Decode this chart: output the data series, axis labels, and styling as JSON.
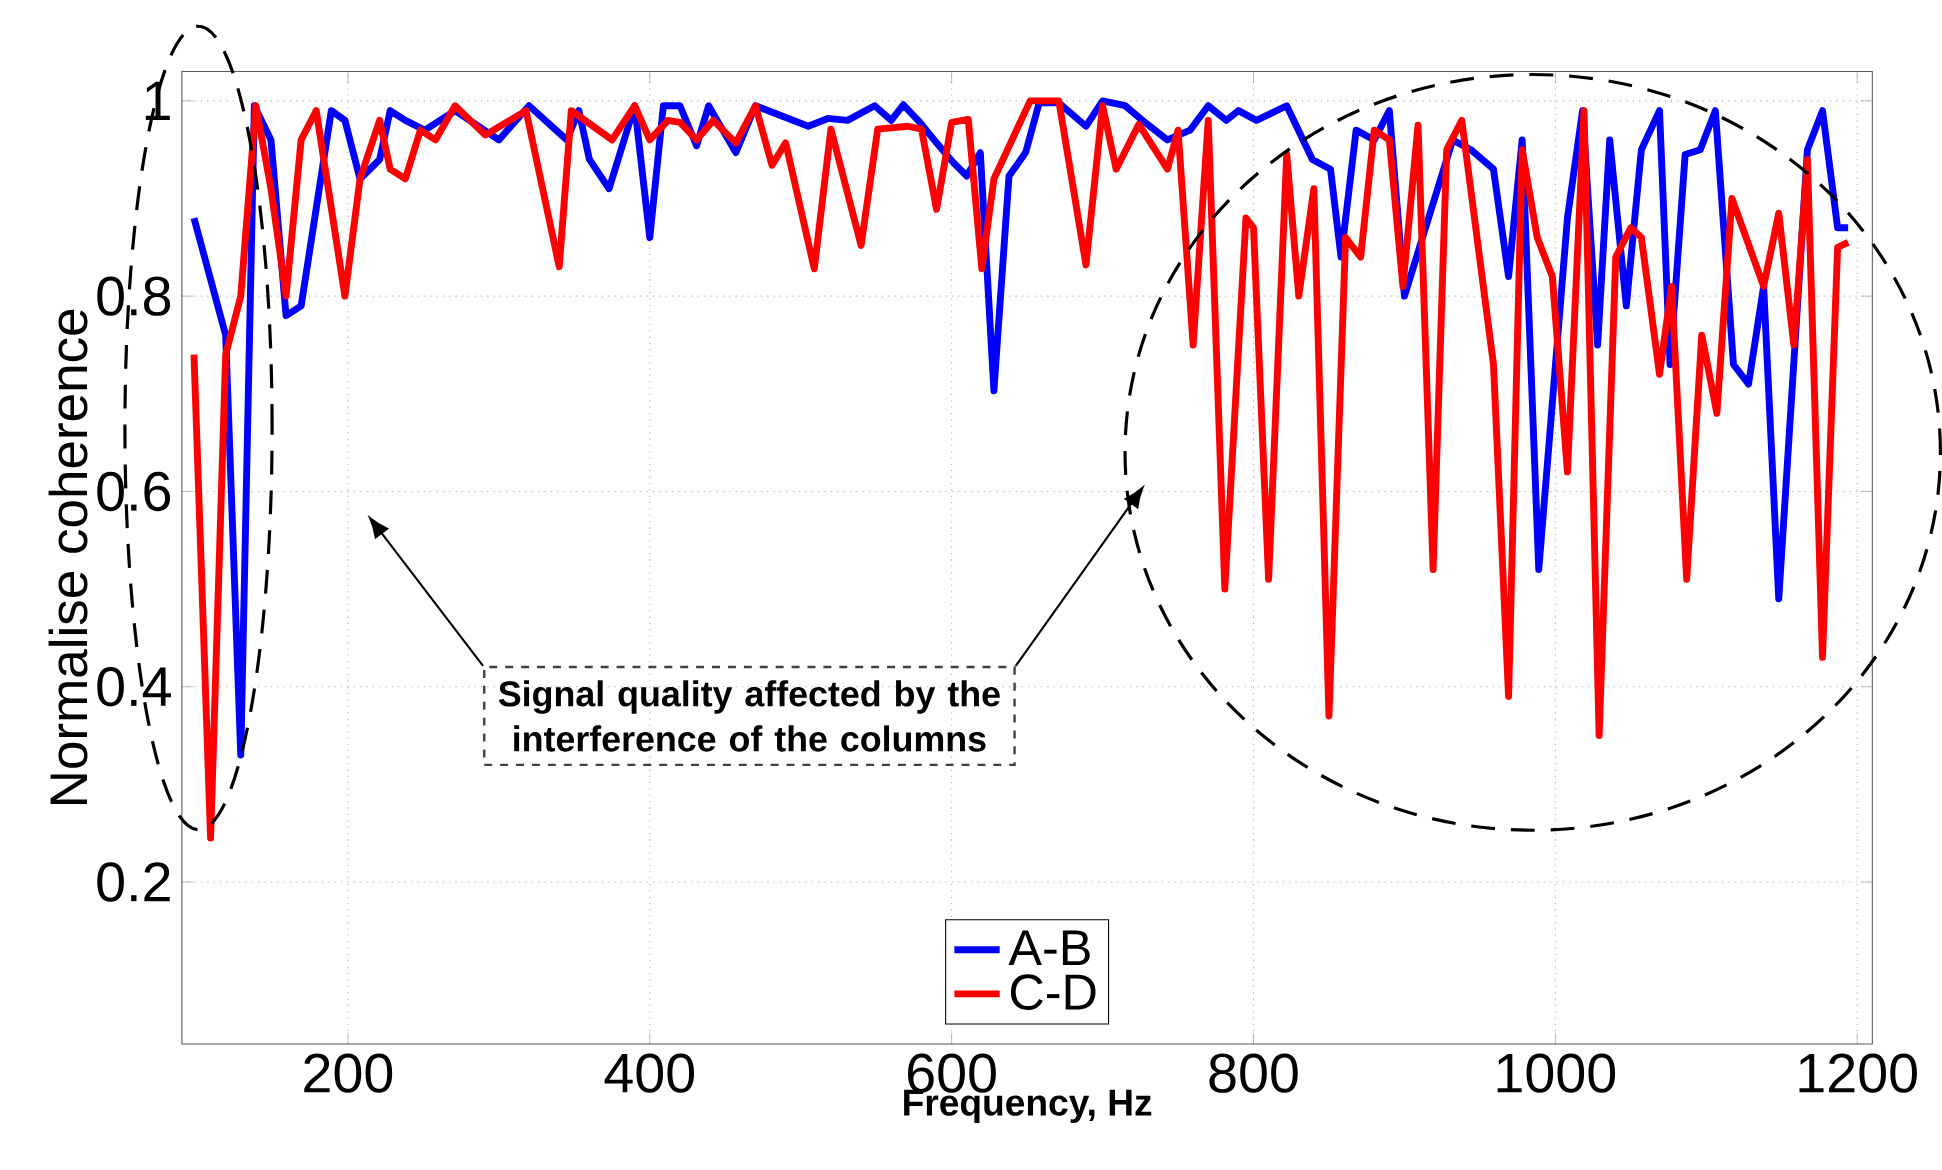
{
  "chart_data": {
    "type": "line",
    "xlabel": "Frequency, Hz",
    "ylabel": "Normalise coherence",
    "annotations": [
      "Signal quality affected by the interference of the columns"
    ],
    "xlim": [
      90,
      1210
    ],
    "ylim": [
      0.034,
      1.03
    ],
    "xticks": [
      200,
      400,
      600,
      800,
      1000,
      1200
    ],
    "yticks": [
      0.2,
      0.4,
      0.6,
      0.8,
      1
    ],
    "grid": true,
    "legend": "bottom",
    "line_style": "solid",
    "marker": "none",
    "series": [
      {
        "name": "A-B",
        "color": "#0000ff",
        "x": [
          98,
          119,
          129,
          138,
          149,
          159,
          169,
          189,
          198,
          208,
          221,
          228,
          238,
          251,
          271,
          300,
          320,
          345,
          353,
          360,
          373,
          390,
          400,
          409,
          420,
          431,
          439,
          457,
          470,
          505,
          518,
          531,
          549,
          560,
          568,
          579,
          590,
          601,
          610,
          619,
          628,
          638,
          649,
          658,
          671,
          689,
          700,
          715,
          728,
          743,
          758,
          770,
          782,
          790,
          802,
          822,
          839,
          851,
          858,
          868,
          880,
          890,
          900,
          910,
          932,
          944,
          959,
          969,
          978,
          989,
          1008,
          1018,
          1028,
          1036,
          1047,
          1057,
          1069,
          1076,
          1086,
          1096,
          1106,
          1118,
          1128,
          1138,
          1148,
          1167,
          1177,
          1187,
          1194
        ],
        "values": [
          0.88,
          0.76,
          0.33,
          0.995,
          0.96,
          0.78,
          0.79,
          0.99,
          0.98,
          0.92,
          0.94,
          0.99,
          0.98,
          0.97,
          0.99,
          0.96,
          0.995,
          0.96,
          0.99,
          0.94,
          0.91,
          0.995,
          0.86,
          0.995,
          0.995,
          0.954,
          0.995,
          0.947,
          0.995,
          0.974,
          0.982,
          0.98,
          0.995,
          0.98,
          0.996,
          0.978,
          0.957,
          0.937,
          0.923,
          0.947,
          0.703,
          0.923,
          0.947,
          0.998,
          0.998,
          0.974,
          1.0,
          0.995,
          0.978,
          0.96,
          0.97,
          0.995,
          0.98,
          0.99,
          0.98,
          0.995,
          0.94,
          0.93,
          0.84,
          0.97,
          0.96,
          0.99,
          0.8,
          0.85,
          0.96,
          0.95,
          0.93,
          0.82,
          0.96,
          0.52,
          0.88,
          0.99,
          0.75,
          0.96,
          0.79,
          0.95,
          0.99,
          0.73,
          0.945,
          0.95,
          0.99,
          0.73,
          0.71,
          0.81,
          0.49,
          0.95,
          0.99,
          0.87,
          0.87
        ]
      },
      {
        "name": "C-D",
        "color": "#ff0000",
        "x": [
          98,
          109,
          119,
          129,
          139,
          149,
          159,
          169,
          179,
          198,
          208,
          221,
          228,
          238,
          248,
          258,
          271,
          291,
          318,
          340,
          348,
          375,
          390,
          400,
          412,
          420,
          431,
          442,
          457,
          470,
          481,
          490,
          509,
          520,
          540,
          551,
          571,
          580,
          590,
          600,
          611,
          620,
          628,
          652,
          671,
          689,
          700,
          709,
          724,
          743,
          750,
          760,
          770,
          781,
          795,
          800,
          810,
          822,
          830,
          840,
          850,
          861,
          871,
          880,
          890,
          899,
          909,
          919,
          928,
          938,
          959,
          969,
          978,
          988,
          998,
          1008,
          1019,
          1029,
          1040,
          1050,
          1057,
          1069,
          1077,
          1087,
          1097,
          1107,
          1117,
          1138,
          1148,
          1158,
          1167,
          1177,
          1187,
          1194
        ],
        "values": [
          0.74,
          0.245,
          0.74,
          0.8,
          0.995,
          0.91,
          0.8,
          0.96,
          0.99,
          0.8,
          0.92,
          0.98,
          0.93,
          0.92,
          0.97,
          0.96,
          0.995,
          0.965,
          0.99,
          0.83,
          0.99,
          0.96,
          0.995,
          0.96,
          0.98,
          0.978,
          0.96,
          0.98,
          0.957,
          0.995,
          0.934,
          0.957,
          0.828,
          0.971,
          0.852,
          0.971,
          0.974,
          0.971,
          0.889,
          0.978,
          0.981,
          0.828,
          0.92,
          1.0,
          1.0,
          0.832,
          0.995,
          0.93,
          0.976,
          0.93,
          0.97,
          0.75,
          0.98,
          0.5,
          0.88,
          0.87,
          0.51,
          0.945,
          0.8,
          0.91,
          0.37,
          0.86,
          0.84,
          0.97,
          0.96,
          0.81,
          0.975,
          0.52,
          0.95,
          0.98,
          0.73,
          0.39,
          0.95,
          0.86,
          0.82,
          0.62,
          0.99,
          0.35,
          0.84,
          0.87,
          0.86,
          0.72,
          0.81,
          0.51,
          0.76,
          0.68,
          0.9,
          0.81,
          0.885,
          0.75,
          0.94,
          0.43,
          0.85,
          0.855
        ]
      }
    ]
  }
}
